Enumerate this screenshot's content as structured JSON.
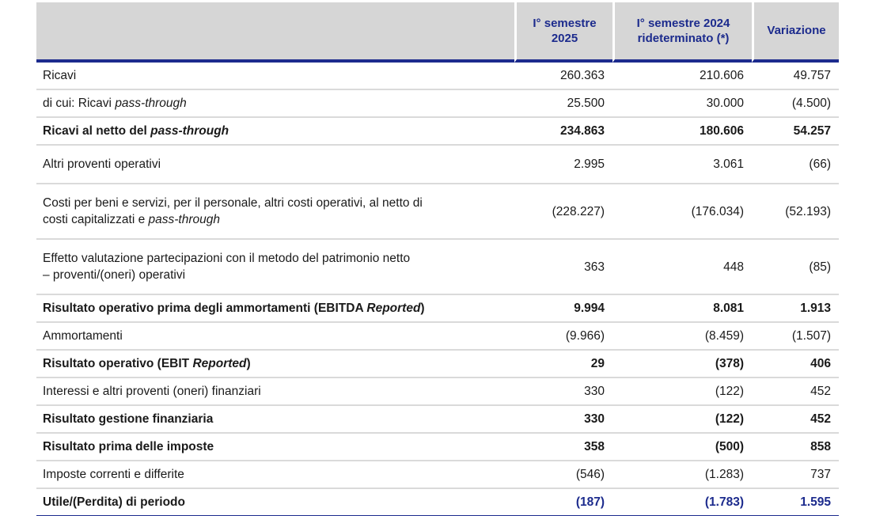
{
  "colors": {
    "navy": "#1c2b8d",
    "header_bg": "#d6d6d6",
    "row_line": "#dadada"
  },
  "table": {
    "columns": [
      "",
      "I° semestre 2025",
      "I° semestre 2024 rideterminato (*)",
      "Variazione"
    ],
    "rows": [
      {
        "label": [
          {
            "t": "Ricavi"
          }
        ],
        "values": [
          "260.363",
          "210.606",
          "49.757"
        ]
      },
      {
        "label": [
          {
            "t": "di cui: Ricavi "
          },
          {
            "t": "pass-through",
            "italic": true
          }
        ],
        "values": [
          "25.500",
          "30.000",
          "(4.500)"
        ]
      },
      {
        "label": [
          {
            "t": "Ricavi al netto del "
          },
          {
            "t": "pass-through",
            "italic": true
          }
        ],
        "values": [
          "234.863",
          "180.606",
          "54.257"
        ],
        "bold": true
      },
      {
        "label": [
          {
            "t": "Altri proventi operativi"
          }
        ],
        "values": [
          "2.995",
          "3.061",
          "(66)"
        ],
        "tall": true
      },
      {
        "label": [
          {
            "t": "Costi per beni e servizi, per il personale, altri costi operativi, al netto di"
          },
          {
            "br": true
          },
          {
            "t": "costi capitalizzati e "
          },
          {
            "t": "pass-through",
            "italic": true
          }
        ],
        "values": [
          "(228.227)",
          "(176.034)",
          "(52.193)"
        ],
        "tall": true
      },
      {
        "label": [
          {
            "t": "Effetto valutazione partecipazioni con il metodo del patrimonio netto"
          },
          {
            "br": true
          },
          {
            "t": "– proventi/(oneri) operativi"
          }
        ],
        "values": [
          "363",
          "448",
          "(85)"
        ],
        "tall": true
      },
      {
        "label": [
          {
            "t": "Risultato operativo prima degli ammortamenti (EBITDA "
          },
          {
            "t": "Reported",
            "italic": true
          },
          {
            "t": ")"
          }
        ],
        "values": [
          "9.994",
          "8.081",
          "1.913"
        ],
        "bold": true
      },
      {
        "label": [
          {
            "t": "Ammortamenti"
          }
        ],
        "values": [
          "(9.966)",
          "(8.459)",
          "(1.507)"
        ]
      },
      {
        "label": [
          {
            "t": "Risultato operativo (EBIT "
          },
          {
            "t": "Reported",
            "italic": true
          },
          {
            "t": ")"
          }
        ],
        "values": [
          "29",
          "(378)",
          "406"
        ],
        "bold": true
      },
      {
        "label": [
          {
            "t": "Interessi e altri proventi (oneri) finanziari"
          }
        ],
        "values": [
          "330",
          "(122)",
          "452"
        ]
      },
      {
        "label": [
          {
            "t": "Risultato gestione finanziaria"
          }
        ],
        "values": [
          "330",
          "(122)",
          "452"
        ],
        "bold": true
      },
      {
        "label": [
          {
            "t": "Risultato prima delle imposte"
          }
        ],
        "values": [
          "358",
          "(500)",
          "858"
        ],
        "bold": true
      },
      {
        "label": [
          {
            "t": "Imposte correnti e differite"
          }
        ],
        "values": [
          "(546)",
          "(1.283)",
          "737"
        ]
      },
      {
        "label": [
          {
            "t": "Utile/(Perdita) di periodo"
          }
        ],
        "values": [
          "(187)",
          "(1.783)",
          "1.595"
        ],
        "bold": true,
        "final": true
      }
    ]
  }
}
